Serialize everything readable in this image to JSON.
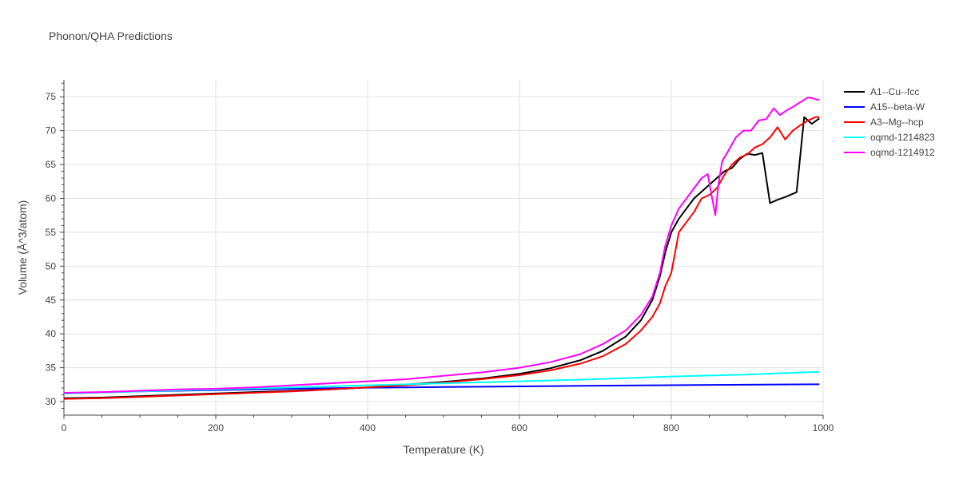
{
  "chart_data": {
    "type": "line",
    "title": "Phonon/QHA Predictions",
    "xlabel": "Temperature (K)",
    "ylabel": "Volume (Å^3/atom)",
    "xlim": [
      0,
      1000
    ],
    "ylim": [
      28,
      77.5
    ],
    "xticks": [
      0,
      200,
      400,
      600,
      800,
      1000
    ],
    "yticks": [
      30,
      35,
      40,
      45,
      50,
      55,
      60,
      65,
      70,
      75
    ],
    "grid": true,
    "legend_position": "top-right, outside plot",
    "series": [
      {
        "name": "A1--Cu--fcc",
        "color": "#000000",
        "x": [
          0,
          50,
          100,
          150,
          200,
          250,
          300,
          350,
          400,
          450,
          500,
          550,
          600,
          640,
          680,
          710,
          740,
          760,
          775,
          785,
          792,
          800,
          810,
          820,
          830,
          840,
          850,
          860,
          870,
          880,
          890,
          900,
          910,
          920,
          930,
          940,
          950,
          965,
          975,
          985,
          995
        ],
        "y": [
          30.5,
          30.6,
          30.8,
          31.0,
          31.2,
          31.4,
          31.6,
          31.8,
          32.1,
          32.5,
          32.9,
          33.4,
          34.1,
          34.9,
          36.1,
          37.5,
          39.6,
          42.0,
          45.0,
          48.5,
          52.0,
          55.0,
          57.0,
          58.5,
          60.0,
          61.0,
          62.0,
          63.0,
          64.0,
          64.5,
          65.8,
          66.6,
          66.4,
          66.7,
          59.3,
          59.8,
          60.2,
          60.9,
          72.0,
          71.0,
          71.8
        ]
      },
      {
        "name": "A15--beta-W",
        "color": "#0000ff",
        "x": [
          0,
          100,
          200,
          300,
          400,
          500,
          600,
          700,
          800,
          900,
          995
        ],
        "y": [
          31.2,
          31.5,
          31.7,
          31.9,
          32.05,
          32.15,
          32.25,
          32.35,
          32.42,
          32.5,
          32.55
        ]
      },
      {
        "name": "A3--Mg--hcp",
        "color": "#ff0000",
        "x": [
          0,
          50,
          100,
          150,
          200,
          250,
          300,
          350,
          400,
          450,
          500,
          550,
          600,
          640,
          680,
          710,
          740,
          760,
          775,
          785,
          792,
          800,
          810,
          820,
          830,
          840,
          850,
          860,
          870,
          880,
          890,
          900,
          910,
          920,
          930,
          940,
          950,
          960,
          970,
          980,
          990,
          995
        ],
        "y": [
          30.4,
          30.5,
          30.7,
          30.9,
          31.1,
          31.3,
          31.5,
          31.8,
          32.1,
          32.4,
          32.8,
          33.3,
          33.9,
          34.6,
          35.6,
          36.7,
          38.5,
          40.5,
          42.5,
          44.5,
          47.0,
          49.0,
          55.0,
          56.5,
          58.0,
          60.0,
          60.5,
          61.5,
          63.5,
          65.0,
          66.0,
          66.5,
          67.5,
          68.0,
          69.0,
          70.5,
          68.7,
          70.0,
          70.8,
          71.5,
          72.0,
          72.0
        ]
      },
      {
        "name": "oqmd-1214823",
        "color": "#00ffff",
        "x": [
          0,
          100,
          200,
          300,
          400,
          500,
          600,
          700,
          800,
          900,
          995
        ],
        "y": [
          31.2,
          31.5,
          31.8,
          32.1,
          32.4,
          32.7,
          33.0,
          33.3,
          33.7,
          34.0,
          34.4
        ]
      },
      {
        "name": "oqmd-1214912",
        "color": "#ff00ff",
        "x": [
          0,
          50,
          100,
          150,
          200,
          250,
          300,
          350,
          400,
          450,
          500,
          550,
          600,
          640,
          680,
          710,
          740,
          760,
          775,
          785,
          792,
          800,
          810,
          820,
          830,
          840,
          848,
          853,
          858,
          862,
          867,
          875,
          885,
          895,
          905,
          915,
          925,
          935,
          943,
          952,
          960,
          970,
          980,
          985,
          995
        ],
        "y": [
          31.3,
          31.4,
          31.6,
          31.8,
          31.9,
          32.1,
          32.4,
          32.7,
          33.0,
          33.3,
          33.8,
          34.3,
          35.0,
          35.8,
          37.0,
          38.5,
          40.5,
          42.8,
          45.5,
          49.0,
          53.0,
          56.0,
          58.5,
          60.0,
          61.5,
          63.0,
          63.6,
          60.5,
          57.5,
          62.0,
          65.5,
          67.0,
          69.0,
          70.0,
          70.0,
          71.5,
          71.7,
          73.3,
          72.3,
          73.0,
          73.5,
          74.2,
          74.9,
          74.8,
          74.5
        ]
      }
    ]
  }
}
